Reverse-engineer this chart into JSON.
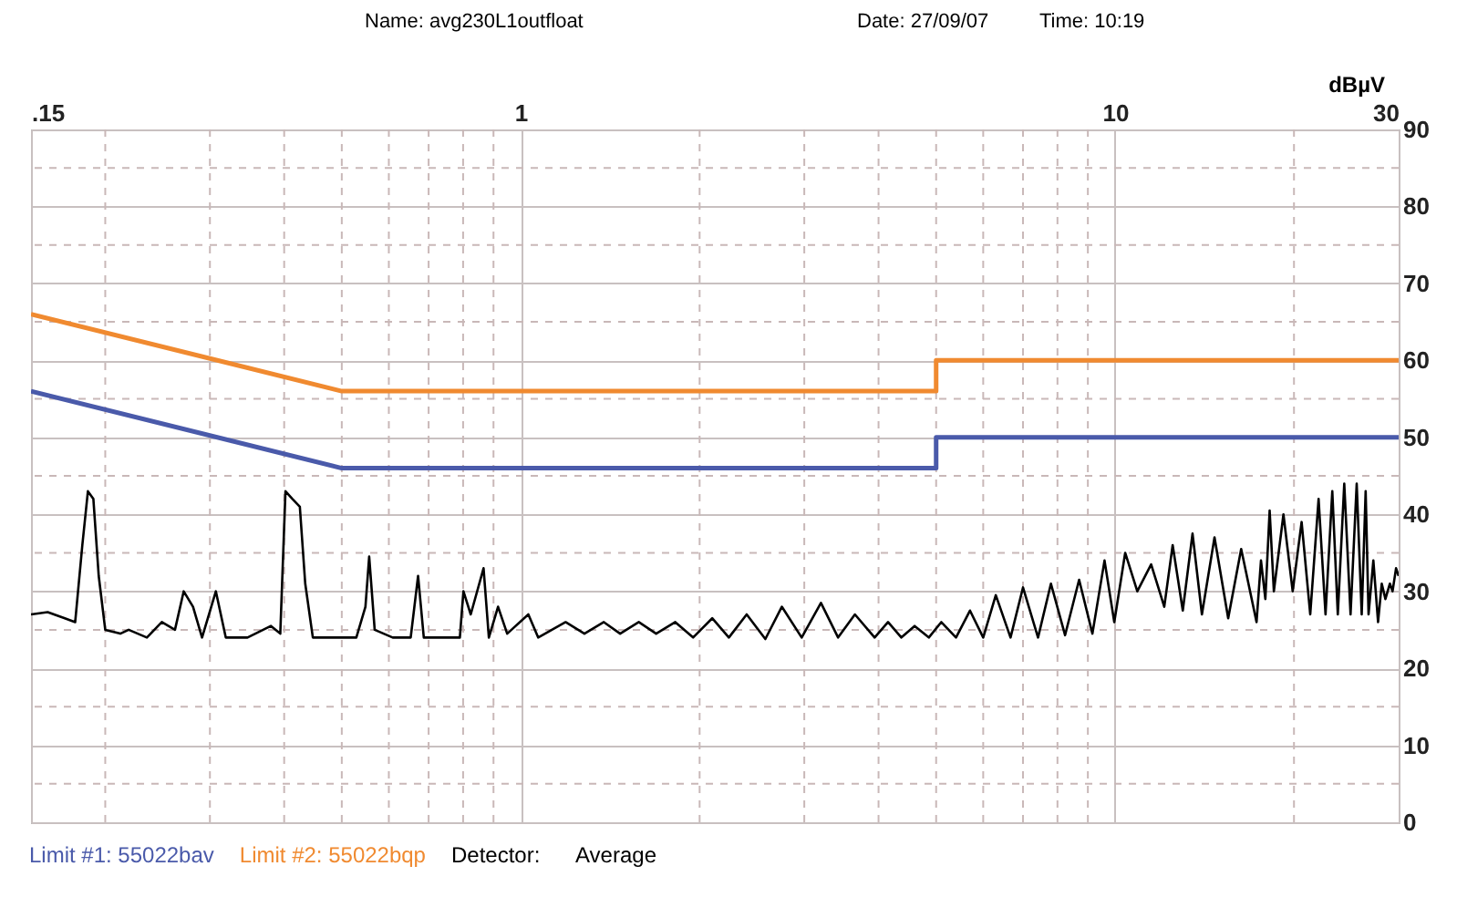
{
  "chart_data": {
    "type": "line",
    "ylabel": "dBµV",
    "annotations": [
      "Name: avg230L1outfloat",
      "Date: 27/09/07",
      "Time: 10:19",
      "Detector:      Average"
    ],
    "xlim": [
      0.15,
      30
    ],
    "ylim": [
      0,
      90
    ],
    "xticks": [
      {
        "value": 0.15,
        "label": ".15"
      },
      {
        "value": 0.2,
        "label": null
      },
      {
        "value": 0.3,
        "label": null
      },
      {
        "value": 0.4,
        "label": null
      },
      {
        "value": 0.5,
        "label": null
      },
      {
        "value": 0.6,
        "label": null
      },
      {
        "value": 0.7,
        "label": null
      },
      {
        "value": 0.8,
        "label": null
      },
      {
        "value": 0.9,
        "label": null
      },
      1,
      {
        "value": 2,
        "label": null
      },
      {
        "value": 3,
        "label": null
      },
      {
        "value": 4,
        "label": null
      },
      {
        "value": 5,
        "label": null
      },
      {
        "value": 6,
        "label": null
      },
      {
        "value": 7,
        "label": null
      },
      {
        "value": 8,
        "label": null
      },
      {
        "value": 9,
        "label": null
      },
      10,
      {
        "value": 20,
        "label": null
      },
      30
    ],
    "yticks": [
      0,
      {
        "value": 5,
        "label": null
      },
      10,
      {
        "value": 15,
        "label": null
      },
      20,
      {
        "value": 25,
        "label": null
      },
      30,
      {
        "value": 35,
        "label": null
      },
      40,
      {
        "value": 45,
        "label": null
      },
      50,
      {
        "value": 55,
        "label": null
      },
      60,
      {
        "value": 65,
        "label": null
      },
      70,
      {
        "value": 75,
        "label": null
      },
      80,
      {
        "value": 85,
        "label": null
      },
      90
    ],
    "grid": true,
    "legend": "bottom left",
    "log": "x",
    "series": [
      {
        "name": "Limit #1: 55022bav",
        "color": "#4a5aaa",
        "x": [
          0.15,
          0.5,
          5,
          5,
          30
        ],
        "values": [
          56,
          46,
          46,
          50,
          50
        ]
      },
      {
        "name": "Limit #2: 55022bqp",
        "color": "#f08a30",
        "x": [
          0.15,
          0.5,
          5,
          5,
          30
        ],
        "values": [
          66,
          56,
          56,
          60,
          60
        ]
      },
      {
        "color": "#000000",
        "x": [
          0.15,
          0.16,
          0.171,
          0.178,
          0.183,
          0.187,
          0.191,
          0.195,
          0.2,
          0.212,
          0.219,
          0.235,
          0.249,
          0.262,
          0.271,
          0.281,
          0.291,
          0.307,
          0.319,
          0.347,
          0.38,
          0.394,
          0.402,
          0.413,
          0.425,
          0.434,
          0.447,
          0.529,
          0.548,
          0.556,
          0.568,
          0.609,
          0.653,
          0.672,
          0.687,
          0.79,
          0.801,
          0.824,
          0.866,
          0.884,
          0.916,
          0.949,
          1.03,
          1.07,
          1.19,
          1.28,
          1.38,
          1.47,
          1.58,
          1.69,
          1.82,
          1.95,
          2.1,
          2.24,
          2.4,
          2.58,
          2.75,
          2.97,
          3.2,
          3.42,
          3.65,
          3.94,
          4.15,
          4.37,
          4.6,
          4.86,
          5.1,
          5.4,
          5.7,
          6.0,
          6.3,
          6.67,
          7.0,
          7.42,
          7.8,
          8.24,
          8.7,
          9.16,
          9.6,
          9.97,
          10.4,
          10.9,
          11.5,
          12.1,
          12.5,
          13.0,
          13.5,
          14.0,
          14.7,
          15.5,
          16.3,
          17.3,
          17.6,
          17.9,
          18.2,
          18.5,
          19.2,
          19.9,
          20.6,
          21.3,
          22.0,
          22.6,
          23.2,
          23.7,
          24.3,
          24.9,
          25.5,
          26.0,
          26.4,
          26.7,
          27.2,
          27.7,
          28.1,
          28.5,
          29.0,
          29.3,
          29.7,
          30
        ],
        "values": [
          27,
          27.3,
          26.5,
          26,
          36,
          43,
          42,
          32,
          25,
          24.5,
          25,
          24,
          26,
          25,
          30,
          28,
          24,
          30,
          24,
          24,
          25.5,
          24.5,
          43,
          42,
          41,
          31,
          24,
          24,
          28,
          34.5,
          25,
          24,
          24,
          32,
          24,
          24,
          30,
          27,
          33,
          24,
          28,
          24.5,
          27,
          24,
          26,
          24.5,
          26,
          24.5,
          26,
          24.5,
          26,
          24,
          26.5,
          24,
          27,
          23.8,
          28,
          24,
          28.5,
          24,
          27,
          24,
          26,
          24,
          25.5,
          24,
          26,
          24,
          27.5,
          24,
          29.5,
          24,
          30.5,
          24,
          31,
          24.3,
          31.5,
          24.5,
          34,
          26,
          35,
          30,
          33.5,
          28,
          36,
          27.5,
          37.5,
          27,
          37,
          26.5,
          35.5,
          26,
          34,
          29,
          40.5,
          30,
          40,
          30,
          39,
          27,
          42,
          27,
          43,
          27,
          44,
          27,
          44,
          27,
          43,
          27,
          34,
          26,
          31,
          29,
          31,
          30,
          33,
          32
        ]
      }
    ]
  }
}
